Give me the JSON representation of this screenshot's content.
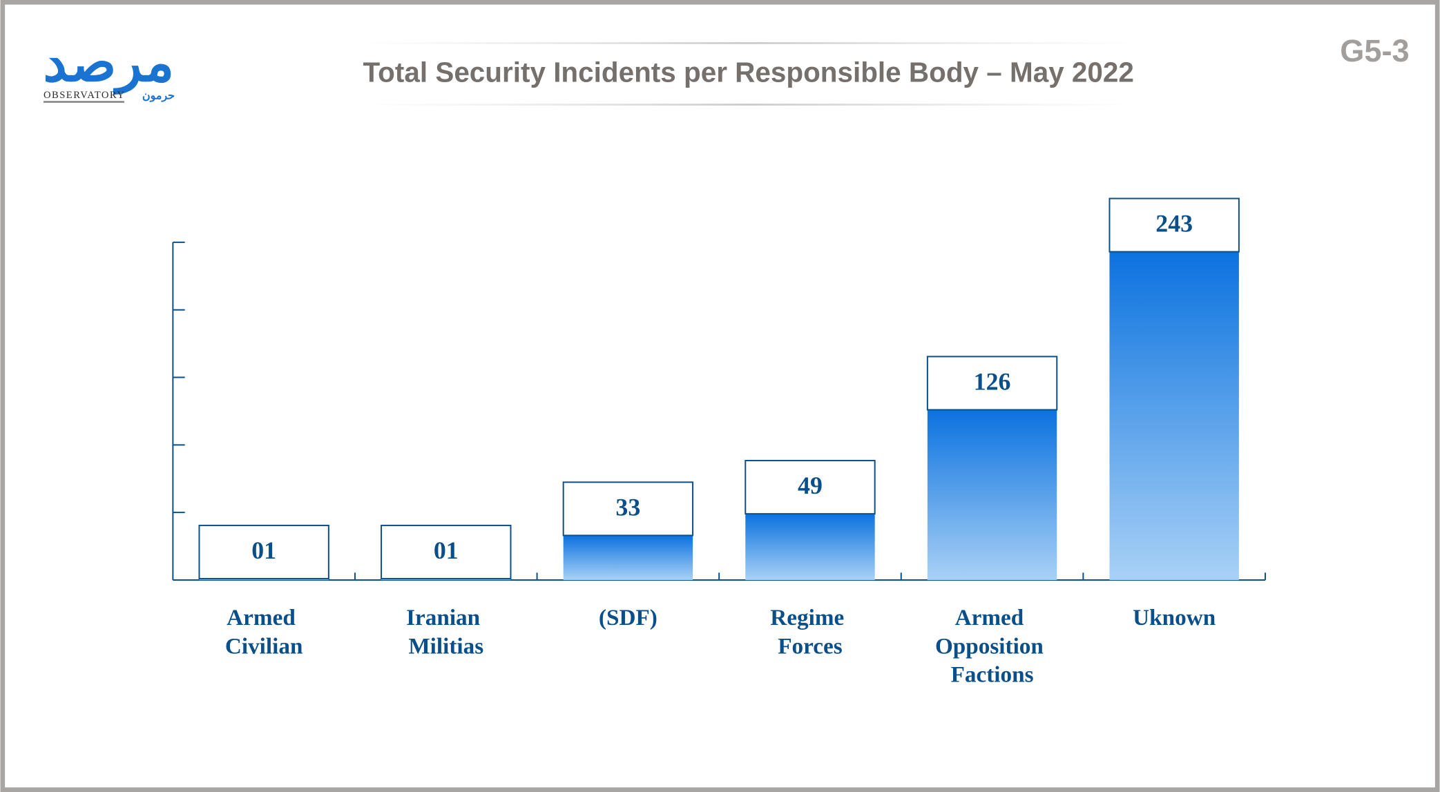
{
  "logo": {
    "arabic": "مرصد",
    "latin": "OBSERVATORY",
    "sub": "حرمون"
  },
  "code": "G5-3",
  "chart_data": {
    "type": "bar",
    "title": "Total Security Incidents per Responsible Body – May 2022",
    "categories": [
      "Armed Civilian",
      "Iranian Militias",
      "(SDF)",
      "Regime Forces",
      "Armed Opposition Factions",
      "Uknown"
    ],
    "values": [
      1,
      1,
      33,
      49,
      126,
      243
    ],
    "value_labels": [
      "01",
      "01",
      "33",
      "49",
      "126",
      "243"
    ],
    "color": "#0b72df",
    "ylim": [
      0,
      250
    ],
    "yticks": [
      0,
      50,
      100,
      150,
      200,
      250
    ],
    "grid": false
  }
}
